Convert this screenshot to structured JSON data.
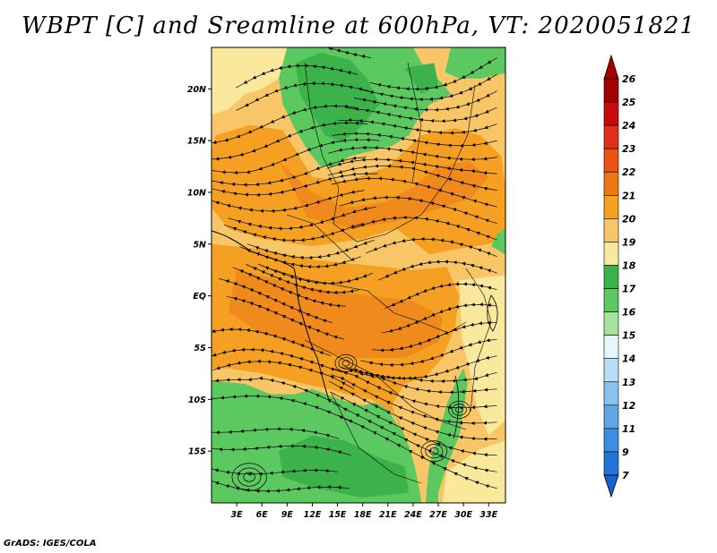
{
  "title": "WBPT [C] and Sreamline at 600hPa, VT: 2020051821",
  "credit": "GrADS: IGES/COLA",
  "map": {
    "lon_range": [
      0,
      35
    ],
    "lat_range": [
      -20,
      24
    ],
    "lat_ticks": [
      {
        "value": 20,
        "label": "20N"
      },
      {
        "value": 15,
        "label": "15N"
      },
      {
        "value": 10,
        "label": "10N"
      },
      {
        "value": 5,
        "label": "5N"
      },
      {
        "value": 0,
        "label": "EQ"
      },
      {
        "value": -5,
        "label": "5S"
      },
      {
        "value": -10,
        "label": "10S"
      },
      {
        "value": -15,
        "label": "15S"
      }
    ],
    "lon_ticks": [
      {
        "value": 3,
        "label": "3E"
      },
      {
        "value": 6,
        "label": "6E"
      },
      {
        "value": 9,
        "label": "9E"
      },
      {
        "value": 12,
        "label": "12E"
      },
      {
        "value": 15,
        "label": "15E"
      },
      {
        "value": 18,
        "label": "18E"
      },
      {
        "value": 21,
        "label": "21E"
      },
      {
        "value": 24,
        "label": "24E"
      },
      {
        "value": 27,
        "label": "27E"
      },
      {
        "value": 30,
        "label": "30E"
      },
      {
        "value": 33,
        "label": "33E"
      }
    ],
    "green_regions": [
      {
        "name": "north-central-green",
        "points": [
          [
            9.0,
            24
          ],
          [
            24.0,
            24
          ],
          [
            25.0,
            22.5
          ],
          [
            27.5,
            20.5
          ],
          [
            28.5,
            19.5
          ],
          [
            26.0,
            18.5
          ],
          [
            24.5,
            17.0
          ],
          [
            23.5,
            15.5
          ],
          [
            21.5,
            14.5
          ],
          [
            19.0,
            14.0
          ],
          [
            16.5,
            13.5
          ],
          [
            14.5,
            12.5
          ],
          [
            13.0,
            12.5
          ],
          [
            11.5,
            14.0
          ],
          [
            10.0,
            16.0
          ],
          [
            8.5,
            18.5
          ],
          [
            8.0,
            21.0
          ]
        ]
      },
      {
        "name": "north-east-green",
        "points": [
          [
            28.5,
            24
          ],
          [
            35,
            24
          ],
          [
            35,
            21.5
          ],
          [
            32.0,
            21.0
          ],
          [
            29.5,
            21.0
          ],
          [
            27.8,
            21.6
          ]
        ]
      },
      {
        "name": "south-west-green",
        "points": [
          [
            0,
            -8.2
          ],
          [
            4,
            -8.5
          ],
          [
            7,
            -9.5
          ],
          [
            10,
            -9.5
          ],
          [
            12,
            -9.0
          ],
          [
            14,
            -9.6
          ],
          [
            16,
            -10.2
          ],
          [
            18,
            -10.6
          ],
          [
            19.5,
            -10.3
          ],
          [
            21,
            -11.0
          ],
          [
            22.0,
            -12.3
          ],
          [
            22.8,
            -13.2
          ],
          [
            23.5,
            -14.5
          ],
          [
            24.2,
            -16.5
          ],
          [
            24.8,
            -19.0
          ],
          [
            25.0,
            -20
          ],
          [
            0,
            -20
          ]
        ]
      },
      {
        "name": "south-east-green",
        "points": [
          [
            27.0,
            -13.5
          ],
          [
            28.0,
            -10.5
          ],
          [
            29.0,
            -8.5
          ],
          [
            30.0,
            -7.0
          ],
          [
            30.5,
            -8.5
          ],
          [
            30.0,
            -11.0
          ],
          [
            29.5,
            -13.5
          ],
          [
            28.0,
            -16.5
          ],
          [
            27.0,
            -19.0
          ],
          [
            27.0,
            -20
          ],
          [
            25.5,
            -20
          ],
          [
            25.8,
            -17.0
          ],
          [
            26.3,
            -15.0
          ]
        ]
      },
      {
        "name": "east-edge-green",
        "points": [
          [
            33.3,
            4.8
          ],
          [
            35,
            4.0
          ],
          [
            35,
            6.5
          ],
          [
            34.0,
            6.0
          ]
        ]
      }
    ],
    "dark_green_regions": [
      {
        "name": "sahel-dark-green",
        "points": [
          [
            10.0,
            22.5
          ],
          [
            13.0,
            23.5
          ],
          [
            16.5,
            22.8
          ],
          [
            18.5,
            21.0
          ],
          [
            20.0,
            18.5
          ],
          [
            18.0,
            16.5
          ],
          [
            15.5,
            14.8
          ],
          [
            13.5,
            15.5
          ],
          [
            12.0,
            17.5
          ],
          [
            10.5,
            19.5
          ]
        ]
      },
      {
        "name": "ne-dark-green",
        "points": [
          [
            23.0,
            22.0
          ],
          [
            26.5,
            22.5
          ],
          [
            27.0,
            20.5
          ],
          [
            25.0,
            19.5
          ]
        ]
      },
      {
        "name": "south-dark-green",
        "points": [
          [
            8.0,
            -15.0
          ],
          [
            12.0,
            -13.5
          ],
          [
            16.0,
            -14.0
          ],
          [
            19.5,
            -15.5
          ],
          [
            23.0,
            -16.5
          ],
          [
            23.5,
            -19.0
          ],
          [
            18.0,
            -19.5
          ],
          [
            12.0,
            -18.5
          ],
          [
            8.5,
            -17.5
          ]
        ]
      }
    ],
    "orange_regions": [
      {
        "name": "sahel-orange",
        "points": [
          [
            0.5,
            15.5
          ],
          [
            4.5,
            16.5
          ],
          [
            8.5,
            16.0
          ],
          [
            12.0,
            11.5
          ],
          [
            16.0,
            11.0
          ],
          [
            21.0,
            12.5
          ],
          [
            25.0,
            15.5
          ],
          [
            29.0,
            16.2
          ],
          [
            32.0,
            15.5
          ],
          [
            34.5,
            13.5
          ],
          [
            35,
            10.5
          ],
          [
            35,
            5.5
          ],
          [
            33.0,
            5.0
          ],
          [
            29.0,
            4.5
          ],
          [
            26.0,
            4.0
          ],
          [
            22.0,
            6.5
          ],
          [
            18.0,
            5.5
          ],
          [
            12.0,
            4.8
          ],
          [
            6.0,
            5.5
          ],
          [
            2.0,
            6.5
          ],
          [
            0,
            8.5
          ],
          [
            0,
            14.0
          ]
        ]
      },
      {
        "name": "central-orange",
        "points": [
          [
            0,
            5.0
          ],
          [
            6.0,
            4.5
          ],
          [
            12.0,
            3.5
          ],
          [
            18.0,
            3.0
          ],
          [
            24.0,
            2.5
          ],
          [
            28.0,
            2.8
          ],
          [
            29.5,
            0.0
          ],
          [
            29.0,
            -3.0
          ],
          [
            27.5,
            -6.0
          ],
          [
            25.5,
            -7.8
          ],
          [
            23.0,
            -8.5
          ],
          [
            21.5,
            -10.5
          ],
          [
            22.5,
            -13.0
          ],
          [
            23.5,
            -14.5
          ],
          [
            22.0,
            -11.5
          ],
          [
            19.0,
            -10.0
          ],
          [
            16.0,
            -9.5
          ],
          [
            14.0,
            -9.0
          ],
          [
            11.0,
            -8.5
          ],
          [
            6.0,
            -7.5
          ],
          [
            2.0,
            -7.0
          ],
          [
            0,
            -7.0
          ]
        ]
      },
      {
        "name": "west-coast-orange",
        "points": [
          [
            0,
            12.0
          ],
          [
            1.8,
            13.0
          ],
          [
            2.6,
            11.5
          ],
          [
            1.5,
            10.0
          ],
          [
            0,
            9.5
          ]
        ]
      }
    ],
    "deep_orange_regions": [
      {
        "name": "congo-core",
        "points": [
          [
            3.0,
            2.5
          ],
          [
            8.0,
            1.5
          ],
          [
            14.0,
            0.5
          ],
          [
            19.0,
            0.0
          ],
          [
            24.0,
            -0.5
          ],
          [
            27.5,
            -2.0
          ],
          [
            27.0,
            -4.5
          ],
          [
            23.0,
            -6.0
          ],
          [
            17.0,
            -6.0
          ],
          [
            11.0,
            -5.0
          ],
          [
            5.5,
            -3.5
          ],
          [
            2.0,
            -1.5
          ]
        ]
      },
      {
        "name": "sahel-core",
        "points": [
          [
            8.0,
            13.0
          ],
          [
            12.0,
            10.0
          ],
          [
            16.0,
            8.5
          ],
          [
            20.5,
            9.0
          ],
          [
            24.0,
            10.5
          ],
          [
            27.0,
            12.5
          ],
          [
            30.5,
            13.0
          ],
          [
            33.0,
            11.5
          ],
          [
            31.0,
            9.5
          ],
          [
            27.5,
            8.5
          ],
          [
            22.0,
            7.2
          ],
          [
            17.0,
            6.5
          ],
          [
            11.5,
            7.5
          ]
        ]
      }
    ],
    "light_regions": [
      {
        "name": "nw-light",
        "points": [
          [
            0,
            24
          ],
          [
            9.0,
            24
          ],
          [
            8.0,
            21.0
          ],
          [
            6.0,
            20.0
          ],
          [
            4.0,
            19.5
          ],
          [
            2.0,
            18.0
          ],
          [
            0,
            17.5
          ]
        ]
      },
      {
        "name": "east-light",
        "points": [
          [
            29.5,
            1.5
          ],
          [
            35,
            2.0
          ],
          [
            35,
            -12.0
          ],
          [
            33.0,
            -13.5
          ],
          [
            31.5,
            -10.5
          ],
          [
            30.8,
            -7.5
          ],
          [
            29.8,
            -4.0
          ]
        ]
      },
      {
        "name": "se-light",
        "points": [
          [
            28.0,
            -17.0
          ],
          [
            31.5,
            -15.0
          ],
          [
            33.0,
            -14.5
          ],
          [
            35,
            -14.0
          ],
          [
            35,
            -20
          ],
          [
            27.5,
            -20
          ]
        ]
      }
    ]
  },
  "colorbar": {
    "levels": [
      {
        "label": "26",
        "color": "#a50000"
      },
      {
        "label": "25",
        "color": "#c80c0c"
      },
      {
        "label": "24",
        "color": "#e0301c"
      },
      {
        "label": "23",
        "color": "#ea5312"
      },
      {
        "label": "22",
        "color": "#f07814"
      },
      {
        "label": "21",
        "color": "#f5a022"
      },
      {
        "label": "20",
        "color": "#f8c667"
      },
      {
        "label": "19",
        "color": "#fae89d"
      },
      {
        "label": "18",
        "color": "#3bb34a"
      },
      {
        "label": "17",
        "color": "#5cc860"
      },
      {
        "label": "16",
        "color": "#a3e39b"
      },
      {
        "label": "15",
        "color": "#e6f6fc"
      },
      {
        "label": "14",
        "color": "#b8def5"
      },
      {
        "label": "13",
        "color": "#8ac2ee"
      },
      {
        "label": "12",
        "color": "#60a7e6"
      },
      {
        "label": "11",
        "color": "#3d8ee0"
      },
      {
        "label": "9",
        "color": "#2274d8"
      },
      {
        "label": "7",
        "color": "#1660d0"
      }
    ],
    "top_color": "#a50000",
    "bottom_color": "#1660d0"
  },
  "colors": {
    "base": "#f8c667",
    "orange": "#f5a022",
    "deep_orange": "#f08a1c",
    "light": "#fae89d",
    "green": "#5cc860",
    "dark_green": "#3bb34a"
  }
}
